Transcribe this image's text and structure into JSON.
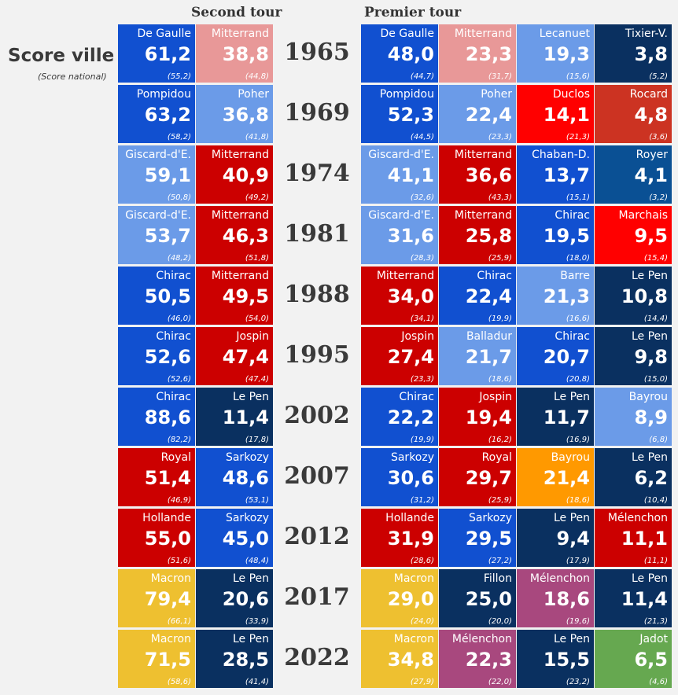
{
  "header": {
    "second": "Second tour",
    "first": "Premier tour",
    "title": "Score ville",
    "subtitle": "(Score national)"
  },
  "colors": {
    "dg": "#1150d0",
    "lb": "#6b9be8",
    "pk": "#e89898",
    "nv": "#0a3060",
    "rd": "#cc0000",
    "br": "#ff0000",
    "rt": "#cc3322",
    "yl": "#eec030",
    "or": "#ff9900",
    "pu": "#a8487e",
    "gr": "#66a850",
    "mb": "#0a5094"
  },
  "chart_data": {
    "type": "table",
    "rows": [
      {
        "year": "1965",
        "second": [
          {
            "name": "De Gaulle",
            "score": "61,2",
            "national": "(55,2)",
            "color": "dg"
          },
          {
            "name": "Mitterrand",
            "score": "38,8",
            "national": "(44,8)",
            "color": "pk"
          }
        ],
        "first": [
          {
            "name": "De Gaulle",
            "score": "48,0",
            "national": "(44,7)",
            "color": "dg"
          },
          {
            "name": "Mitterrand",
            "score": "23,3",
            "national": "(31,7)",
            "color": "pk"
          },
          {
            "name": "Lecanuet",
            "score": "19,3",
            "national": "(15,6)",
            "color": "lb"
          },
          {
            "name": "Tixier-V.",
            "score": "3,8",
            "national": "(5,2)",
            "color": "nv"
          }
        ]
      },
      {
        "year": "1969",
        "second": [
          {
            "name": "Pompidou",
            "score": "63,2",
            "national": "(58,2)",
            "color": "dg"
          },
          {
            "name": "Poher",
            "score": "36,8",
            "national": "(41,8)",
            "color": "lb"
          }
        ],
        "first": [
          {
            "name": "Pompidou",
            "score": "52,3",
            "national": "(44,5)",
            "color": "dg"
          },
          {
            "name": "Poher",
            "score": "22,4",
            "national": "(23,3)",
            "color": "lb"
          },
          {
            "name": "Duclos",
            "score": "14,1",
            "national": "(21,3)",
            "color": "br"
          },
          {
            "name": "Rocard",
            "score": "4,8",
            "national": "(3,6)",
            "color": "rt"
          }
        ]
      },
      {
        "year": "1974",
        "second": [
          {
            "name": "Giscard-d'E.",
            "score": "59,1",
            "national": "(50,8)",
            "color": "lb"
          },
          {
            "name": "Mitterrand",
            "score": "40,9",
            "national": "(49,2)",
            "color": "rd"
          }
        ],
        "first": [
          {
            "name": "Giscard-d'E.",
            "score": "41,1",
            "national": "(32,6)",
            "color": "lb"
          },
          {
            "name": "Mitterrand",
            "score": "36,6",
            "national": "(43,3)",
            "color": "rd"
          },
          {
            "name": "Chaban-D.",
            "score": "13,7",
            "national": "(15,1)",
            "color": "dg"
          },
          {
            "name": "Royer",
            "score": "4,1",
            "national": "(3,2)",
            "color": "mb"
          }
        ]
      },
      {
        "year": "1981",
        "second": [
          {
            "name": "Giscard-d'E.",
            "score": "53,7",
            "national": "(48,2)",
            "color": "lb"
          },
          {
            "name": "Mitterrand",
            "score": "46,3",
            "national": "(51,8)",
            "color": "rd"
          }
        ],
        "first": [
          {
            "name": "Giscard-d'E.",
            "score": "31,6",
            "national": "(28,3)",
            "color": "lb"
          },
          {
            "name": "Mitterrand",
            "score": "25,8",
            "national": "(25,9)",
            "color": "rd"
          },
          {
            "name": "Chirac",
            "score": "19,5",
            "national": "(18,0)",
            "color": "dg"
          },
          {
            "name": "Marchais",
            "score": "9,5",
            "national": "(15,4)",
            "color": "br"
          }
        ]
      },
      {
        "year": "1988",
        "second": [
          {
            "name": "Chirac",
            "score": "50,5",
            "national": "(46,0)",
            "color": "dg"
          },
          {
            "name": "Mitterrand",
            "score": "49,5",
            "national": "(54,0)",
            "color": "rd"
          }
        ],
        "first": [
          {
            "name": "Mitterrand",
            "score": "34,0",
            "national": "(34,1)",
            "color": "rd"
          },
          {
            "name": "Chirac",
            "score": "22,4",
            "national": "(19,9)",
            "color": "dg"
          },
          {
            "name": "Barre",
            "score": "21,3",
            "national": "(16,6)",
            "color": "lb"
          },
          {
            "name": "Le Pen",
            "score": "10,8",
            "national": "(14,4)",
            "color": "nv"
          }
        ]
      },
      {
        "year": "1995",
        "second": [
          {
            "name": "Chirac",
            "score": "52,6",
            "national": "(52,6)",
            "color": "dg"
          },
          {
            "name": "Jospin",
            "score": "47,4",
            "national": "(47,4)",
            "color": "rd"
          }
        ],
        "first": [
          {
            "name": "Jospin",
            "score": "27,4",
            "national": "(23,3)",
            "color": "rd"
          },
          {
            "name": "Balladur",
            "score": "21,7",
            "national": "(18,6)",
            "color": "lb"
          },
          {
            "name": "Chirac",
            "score": "20,7",
            "national": "(20,8)",
            "color": "dg"
          },
          {
            "name": "Le Pen",
            "score": "9,8",
            "national": "(15,0)",
            "color": "nv"
          }
        ]
      },
      {
        "year": "2002",
        "second": [
          {
            "name": "Chirac",
            "score": "88,6",
            "national": "(82,2)",
            "color": "dg"
          },
          {
            "name": "Le Pen",
            "score": "11,4",
            "national": "(17,8)",
            "color": "nv"
          }
        ],
        "first": [
          {
            "name": "Chirac",
            "score": "22,2",
            "national": "(19,9)",
            "color": "dg"
          },
          {
            "name": "Jospin",
            "score": "19,4",
            "national": "(16,2)",
            "color": "rd"
          },
          {
            "name": "Le Pen",
            "score": "11,7",
            "national": "(16,9)",
            "color": "nv"
          },
          {
            "name": "Bayrou",
            "score": "8,9",
            "national": "(6,8)",
            "color": "lb"
          }
        ]
      },
      {
        "year": "2007",
        "second": [
          {
            "name": "Royal",
            "score": "51,4",
            "national": "(46,9)",
            "color": "rd"
          },
          {
            "name": "Sarkozy",
            "score": "48,6",
            "national": "(53,1)",
            "color": "dg"
          }
        ],
        "first": [
          {
            "name": "Sarkozy",
            "score": "30,6",
            "national": "(31,2)",
            "color": "dg"
          },
          {
            "name": "Royal",
            "score": "29,7",
            "national": "(25,9)",
            "color": "rd"
          },
          {
            "name": "Bayrou",
            "score": "21,4",
            "national": "(18,6)",
            "color": "or"
          },
          {
            "name": "Le Pen",
            "score": "6,2",
            "national": "(10,4)",
            "color": "nv"
          }
        ]
      },
      {
        "year": "2012",
        "second": [
          {
            "name": "Hollande",
            "score": "55,0",
            "national": "(51,6)",
            "color": "rd"
          },
          {
            "name": "Sarkozy",
            "score": "45,0",
            "national": "(48,4)",
            "color": "dg"
          }
        ],
        "first": [
          {
            "name": "Hollande",
            "score": "31,9",
            "national": "(28,6)",
            "color": "rd"
          },
          {
            "name": "Sarkozy",
            "score": "29,5",
            "national": "(27,2)",
            "color": "dg"
          },
          {
            "name": "Le Pen",
            "score": "9,4",
            "national": "(17,9)",
            "color": "nv"
          },
          {
            "name": "Mélenchon",
            "score": "11,1",
            "national": "(11,1)",
            "color": "rd"
          }
        ]
      },
      {
        "year": "2017",
        "second": [
          {
            "name": "Macron",
            "score": "79,4",
            "national": "(66,1)",
            "color": "yl"
          },
          {
            "name": "Le Pen",
            "score": "20,6",
            "national": "(33,9)",
            "color": "nv"
          }
        ],
        "first": [
          {
            "name": "Macron",
            "score": "29,0",
            "national": "(24,0)",
            "color": "yl"
          },
          {
            "name": "Fillon",
            "score": "25,0",
            "national": "(20,0)",
            "color": "nv"
          },
          {
            "name": "Mélenchon",
            "score": "18,6",
            "national": "(19,6)",
            "color": "pu"
          },
          {
            "name": "Le Pen",
            "score": "11,4",
            "national": "(21,3)",
            "color": "nv"
          }
        ]
      },
      {
        "year": "2022",
        "second": [
          {
            "name": "Macron",
            "score": "71,5",
            "national": "(58,6)",
            "color": "yl"
          },
          {
            "name": "Le Pen",
            "score": "28,5",
            "national": "(41,4)",
            "color": "nv"
          }
        ],
        "first": [
          {
            "name": "Macron",
            "score": "34,8",
            "national": "(27,9)",
            "color": "yl"
          },
          {
            "name": "Mélenchon",
            "score": "22,3",
            "national": "(22,0)",
            "color": "pu"
          },
          {
            "name": "Le Pen",
            "score": "15,5",
            "national": "(23,2)",
            "color": "nv"
          },
          {
            "name": "Jadot",
            "score": "6,5",
            "national": "(4,6)",
            "color": "gr"
          }
        ]
      }
    ]
  }
}
